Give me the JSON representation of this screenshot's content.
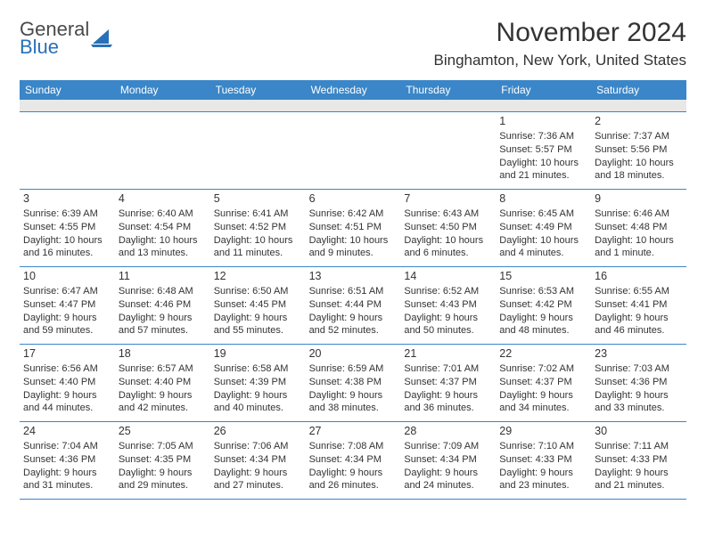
{
  "logo": {
    "general": "General",
    "blue": "Blue"
  },
  "title": "November 2024",
  "location": "Binghamton, New York, United States",
  "colors": {
    "header_bg": "#3a86c8",
    "header_text": "#ffffff",
    "subbar_bg": "#e8e8e8",
    "cell_text": "#333333",
    "divider": "#3a86c8",
    "logo_blue": "#2970b8",
    "logo_gray": "#4a4a4a"
  },
  "dayHeaders": [
    "Sunday",
    "Monday",
    "Tuesday",
    "Wednesday",
    "Thursday",
    "Friday",
    "Saturday"
  ],
  "weeks": [
    [
      null,
      null,
      null,
      null,
      null,
      {
        "d": "1",
        "sr": "Sunrise: 7:36 AM",
        "ss": "Sunset: 5:57 PM",
        "dl1": "Daylight: 10 hours",
        "dl2": "and 21 minutes."
      },
      {
        "d": "2",
        "sr": "Sunrise: 7:37 AM",
        "ss": "Sunset: 5:56 PM",
        "dl1": "Daylight: 10 hours",
        "dl2": "and 18 minutes."
      }
    ],
    [
      {
        "d": "3",
        "sr": "Sunrise: 6:39 AM",
        "ss": "Sunset: 4:55 PM",
        "dl1": "Daylight: 10 hours",
        "dl2": "and 16 minutes."
      },
      {
        "d": "4",
        "sr": "Sunrise: 6:40 AM",
        "ss": "Sunset: 4:54 PM",
        "dl1": "Daylight: 10 hours",
        "dl2": "and 13 minutes."
      },
      {
        "d": "5",
        "sr": "Sunrise: 6:41 AM",
        "ss": "Sunset: 4:52 PM",
        "dl1": "Daylight: 10 hours",
        "dl2": "and 11 minutes."
      },
      {
        "d": "6",
        "sr": "Sunrise: 6:42 AM",
        "ss": "Sunset: 4:51 PM",
        "dl1": "Daylight: 10 hours",
        "dl2": "and 9 minutes."
      },
      {
        "d": "7",
        "sr": "Sunrise: 6:43 AM",
        "ss": "Sunset: 4:50 PM",
        "dl1": "Daylight: 10 hours",
        "dl2": "and 6 minutes."
      },
      {
        "d": "8",
        "sr": "Sunrise: 6:45 AM",
        "ss": "Sunset: 4:49 PM",
        "dl1": "Daylight: 10 hours",
        "dl2": "and 4 minutes."
      },
      {
        "d": "9",
        "sr": "Sunrise: 6:46 AM",
        "ss": "Sunset: 4:48 PM",
        "dl1": "Daylight: 10 hours",
        "dl2": "and 1 minute."
      }
    ],
    [
      {
        "d": "10",
        "sr": "Sunrise: 6:47 AM",
        "ss": "Sunset: 4:47 PM",
        "dl1": "Daylight: 9 hours",
        "dl2": "and 59 minutes."
      },
      {
        "d": "11",
        "sr": "Sunrise: 6:48 AM",
        "ss": "Sunset: 4:46 PM",
        "dl1": "Daylight: 9 hours",
        "dl2": "and 57 minutes."
      },
      {
        "d": "12",
        "sr": "Sunrise: 6:50 AM",
        "ss": "Sunset: 4:45 PM",
        "dl1": "Daylight: 9 hours",
        "dl2": "and 55 minutes."
      },
      {
        "d": "13",
        "sr": "Sunrise: 6:51 AM",
        "ss": "Sunset: 4:44 PM",
        "dl1": "Daylight: 9 hours",
        "dl2": "and 52 minutes."
      },
      {
        "d": "14",
        "sr": "Sunrise: 6:52 AM",
        "ss": "Sunset: 4:43 PM",
        "dl1": "Daylight: 9 hours",
        "dl2": "and 50 minutes."
      },
      {
        "d": "15",
        "sr": "Sunrise: 6:53 AM",
        "ss": "Sunset: 4:42 PM",
        "dl1": "Daylight: 9 hours",
        "dl2": "and 48 minutes."
      },
      {
        "d": "16",
        "sr": "Sunrise: 6:55 AM",
        "ss": "Sunset: 4:41 PM",
        "dl1": "Daylight: 9 hours",
        "dl2": "and 46 minutes."
      }
    ],
    [
      {
        "d": "17",
        "sr": "Sunrise: 6:56 AM",
        "ss": "Sunset: 4:40 PM",
        "dl1": "Daylight: 9 hours",
        "dl2": "and 44 minutes."
      },
      {
        "d": "18",
        "sr": "Sunrise: 6:57 AM",
        "ss": "Sunset: 4:40 PM",
        "dl1": "Daylight: 9 hours",
        "dl2": "and 42 minutes."
      },
      {
        "d": "19",
        "sr": "Sunrise: 6:58 AM",
        "ss": "Sunset: 4:39 PM",
        "dl1": "Daylight: 9 hours",
        "dl2": "and 40 minutes."
      },
      {
        "d": "20",
        "sr": "Sunrise: 6:59 AM",
        "ss": "Sunset: 4:38 PM",
        "dl1": "Daylight: 9 hours",
        "dl2": "and 38 minutes."
      },
      {
        "d": "21",
        "sr": "Sunrise: 7:01 AM",
        "ss": "Sunset: 4:37 PM",
        "dl1": "Daylight: 9 hours",
        "dl2": "and 36 minutes."
      },
      {
        "d": "22",
        "sr": "Sunrise: 7:02 AM",
        "ss": "Sunset: 4:37 PM",
        "dl1": "Daylight: 9 hours",
        "dl2": "and 34 minutes."
      },
      {
        "d": "23",
        "sr": "Sunrise: 7:03 AM",
        "ss": "Sunset: 4:36 PM",
        "dl1": "Daylight: 9 hours",
        "dl2": "and 33 minutes."
      }
    ],
    [
      {
        "d": "24",
        "sr": "Sunrise: 7:04 AM",
        "ss": "Sunset: 4:36 PM",
        "dl1": "Daylight: 9 hours",
        "dl2": "and 31 minutes."
      },
      {
        "d": "25",
        "sr": "Sunrise: 7:05 AM",
        "ss": "Sunset: 4:35 PM",
        "dl1": "Daylight: 9 hours",
        "dl2": "and 29 minutes."
      },
      {
        "d": "26",
        "sr": "Sunrise: 7:06 AM",
        "ss": "Sunset: 4:34 PM",
        "dl1": "Daylight: 9 hours",
        "dl2": "and 27 minutes."
      },
      {
        "d": "27",
        "sr": "Sunrise: 7:08 AM",
        "ss": "Sunset: 4:34 PM",
        "dl1": "Daylight: 9 hours",
        "dl2": "and 26 minutes."
      },
      {
        "d": "28",
        "sr": "Sunrise: 7:09 AM",
        "ss": "Sunset: 4:34 PM",
        "dl1": "Daylight: 9 hours",
        "dl2": "and 24 minutes."
      },
      {
        "d": "29",
        "sr": "Sunrise: 7:10 AM",
        "ss": "Sunset: 4:33 PM",
        "dl1": "Daylight: 9 hours",
        "dl2": "and 23 minutes."
      },
      {
        "d": "30",
        "sr": "Sunrise: 7:11 AM",
        "ss": "Sunset: 4:33 PM",
        "dl1": "Daylight: 9 hours",
        "dl2": "and 21 minutes."
      }
    ]
  ]
}
